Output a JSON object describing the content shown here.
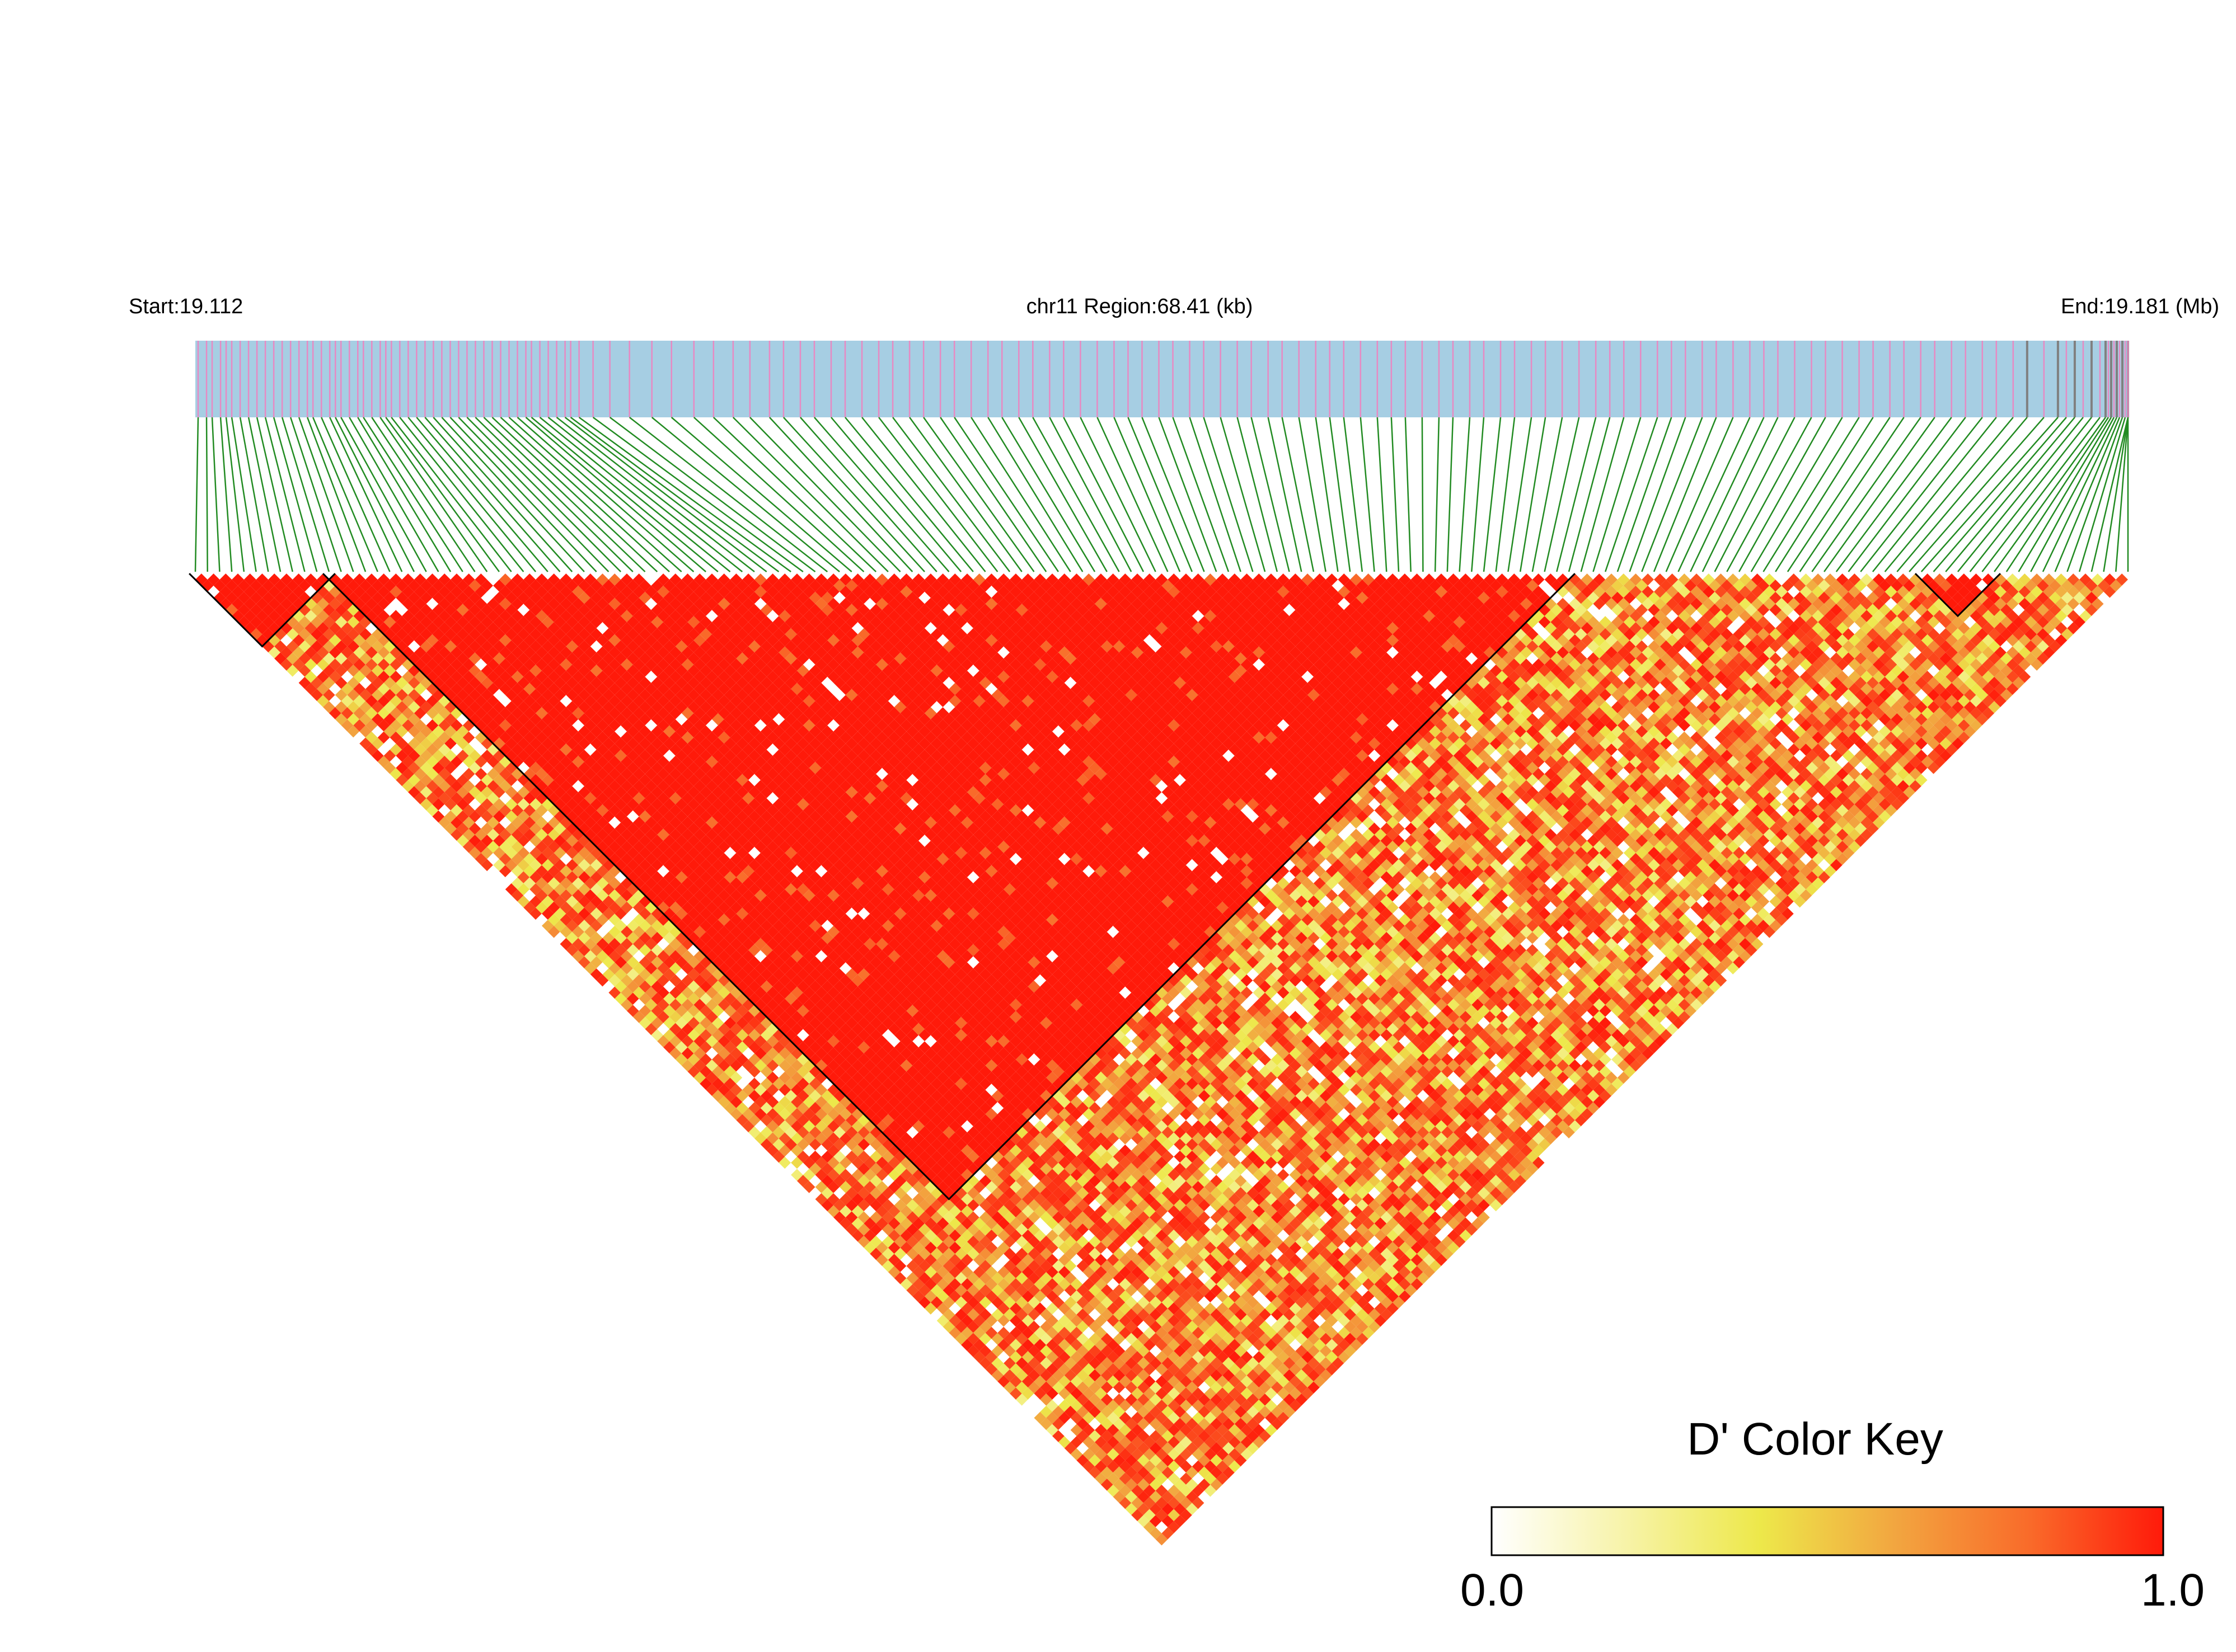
{
  "header": {
    "start_label": "Start:19.112",
    "region_label": "chr11 Region:68.41 (kb)",
    "end_label": "End:19.181 (Mb)"
  },
  "color_key": {
    "title": "D' Color Key",
    "min_label": "0.0",
    "max_label": "1.0",
    "stops": [
      "#ffffff",
      "#f7f3a8",
      "#ede84a",
      "#f2a640",
      "#f96b2a",
      "#ff1a0a"
    ]
  },
  "colors": {
    "snp_bar_bg": "#a6cee3",
    "snp_tick_pink": "#e78ac3",
    "snp_tick_gray": "#808080",
    "connector_line": "#228b22",
    "high_ld": "#ff0000"
  },
  "chart_data": {
    "type": "heatmap",
    "description_of_measure": "D'",
    "chromosome": "chr11",
    "region_start_mb": 19.112,
    "region_end_mb": 19.181,
    "region_length_kb": 68.41,
    "value_range": [
      0.0,
      1.0
    ],
    "snp_count": 160,
    "snp_positions_mb": [
      19.1121,
      19.1124,
      19.1126,
      19.1129,
      19.1131,
      19.1133,
      19.1136,
      19.1139,
      19.1142,
      19.1145,
      19.1148,
      19.1151,
      19.1154,
      19.1157,
      19.116,
      19.1162,
      19.1165,
      19.1168,
      19.117,
      19.1172,
      19.1175,
      19.1178,
      19.118,
      19.1183,
      19.1186,
      19.1188,
      19.119,
      19.1193,
      19.1196,
      19.1199,
      19.1202,
      19.1205,
      19.1208,
      19.1211,
      19.1214,
      19.1217,
      19.122,
      19.1223,
      19.1226,
      19.1229,
      19.1232,
      19.1235,
      19.1238,
      19.124,
      19.1243,
      19.1246,
      19.1249,
      19.1252,
      19.1254,
      19.1257,
      19.1262,
      19.1268,
      19.1275,
      19.1283,
      19.129,
      19.1298,
      19.1305,
      19.1312,
      19.1318,
      19.1325,
      19.133,
      19.1336,
      19.1341,
      19.1347,
      19.1352,
      19.1358,
      19.1364,
      19.1369,
      19.1375,
      19.138,
      19.1386,
      19.1391,
      19.1397,
      19.1403,
      19.1408,
      19.1414,
      19.1419,
      19.1425,
      19.143,
      19.1436,
      19.1442,
      19.1448,
      19.1453,
      19.1458,
      19.1464,
      19.1469,
      19.1475,
      19.148,
      19.1486,
      19.1492,
      19.1497,
      19.1503,
      19.1508,
      19.1514,
      19.152,
      19.1525,
      19.153,
      19.1536,
      19.1542,
      19.1547,
      19.1552,
      19.1558,
      19.1564,
      19.1569,
      19.1575,
      19.158,
      19.1586,
      19.1591,
      19.1597,
      19.1602,
      19.1608,
      19.1614,
      19.162,
      19.1625,
      19.163,
      19.1636,
      19.1642,
      19.1647,
      19.1652,
      19.1658,
      19.1663,
      19.1669,
      19.1675,
      19.168,
      19.1685,
      19.1691,
      19.1697,
      19.1702,
      19.1708,
      19.1714,
      19.1719,
      19.1725,
      19.173,
      19.1736,
      19.1741,
      19.1747,
      19.1752,
      19.1758,
      19.1763,
      19.1769,
      19.1774,
      19.178,
      19.1785,
      19.1788,
      19.1791,
      19.1794,
      19.1797,
      19.18,
      19.1802,
      19.1803,
      19.1804,
      19.1805,
      19.1806,
      19.1807,
      19.1808,
      19.1809,
      19.181,
      19.181,
      19.181,
      19.181
    ],
    "ld_blocks": [
      {
        "from_snp": 1,
        "to_snp": 12
      },
      {
        "from_snp": 12,
        "to_snp": 114
      },
      {
        "from_snp": 143,
        "to_snp": 149
      }
    ]
  }
}
